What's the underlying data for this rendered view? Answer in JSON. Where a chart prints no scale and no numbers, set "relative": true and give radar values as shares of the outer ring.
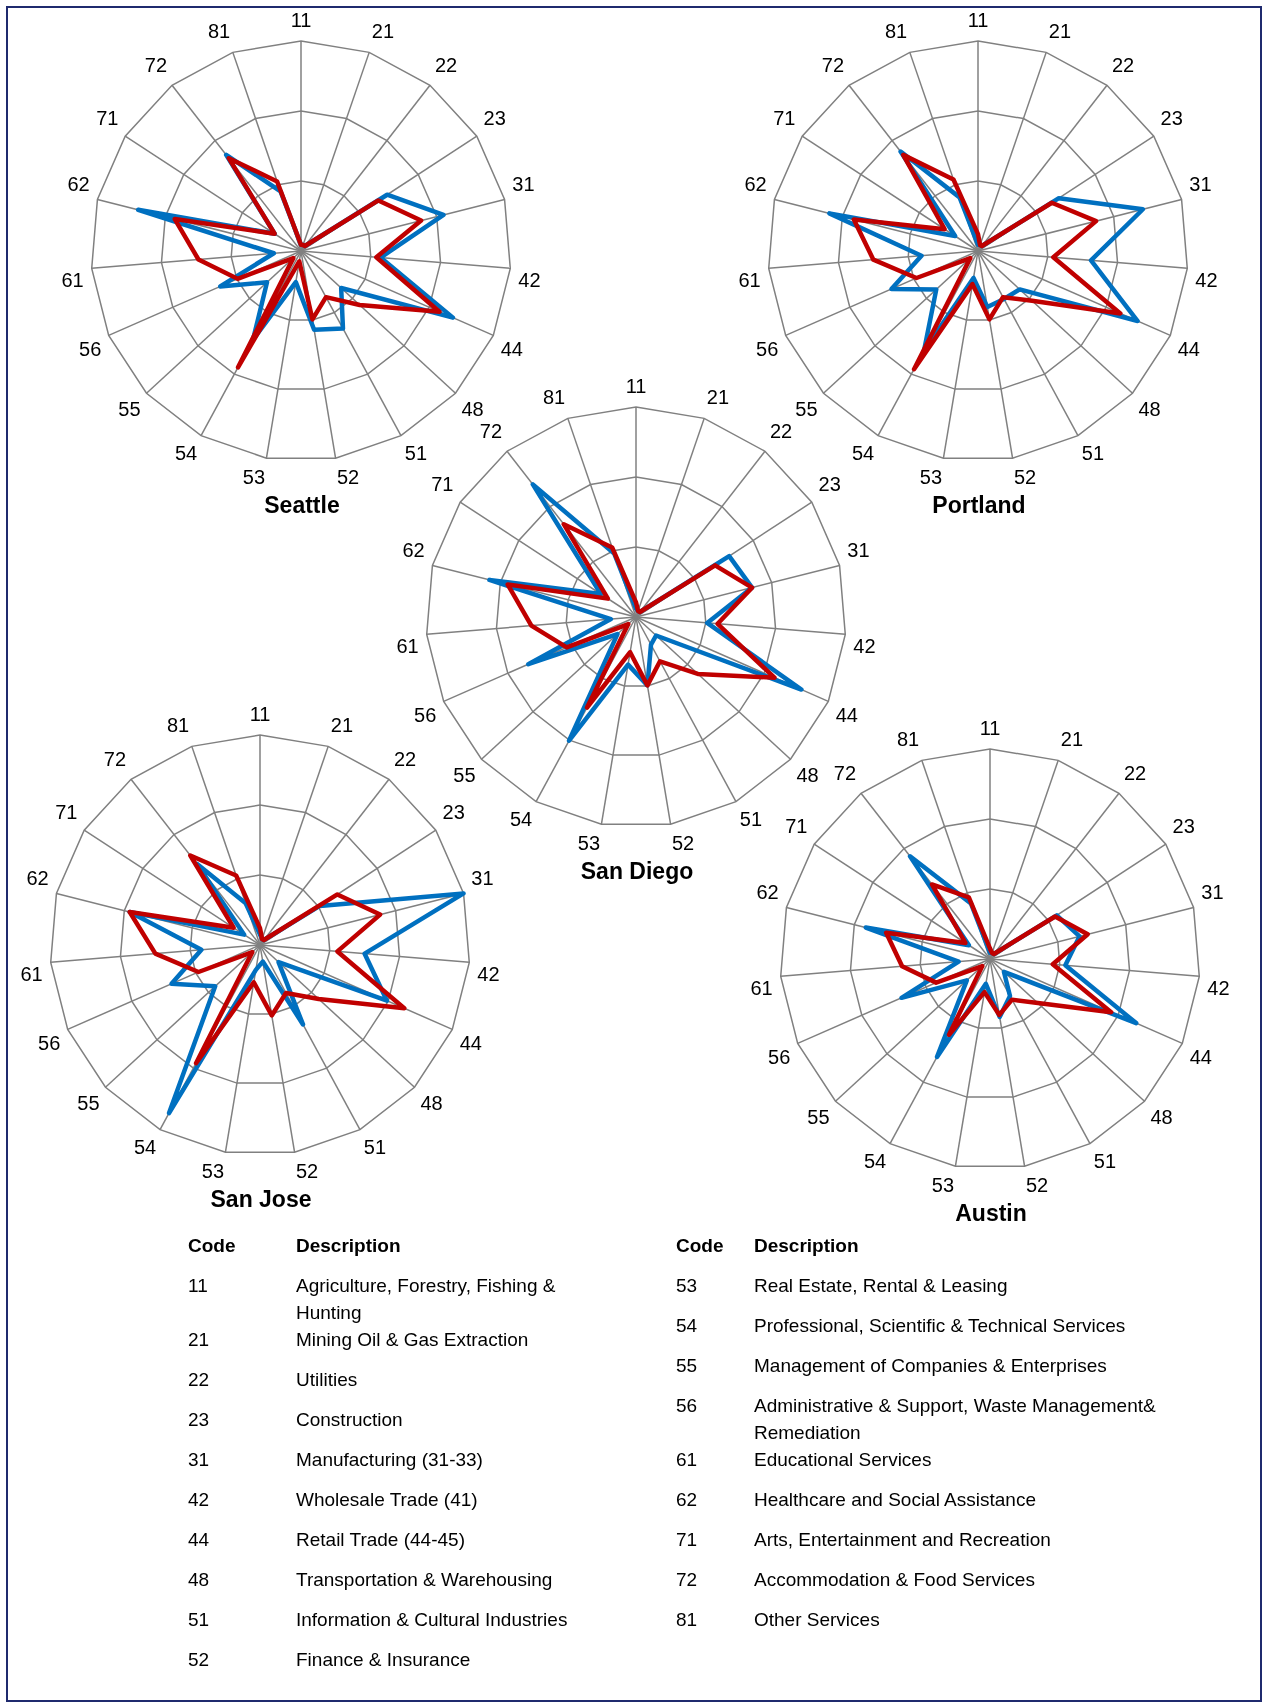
{
  "chart_data": [
    {
      "type": "radar",
      "title": "Seattle",
      "categories": [
        "11",
        "21",
        "22",
        "23",
        "31",
        "42",
        "44",
        "48",
        "51",
        "52",
        "53",
        "54",
        "55",
        "56",
        "61",
        "62",
        "71",
        "72",
        "81"
      ],
      "relative": true,
      "marker": "none",
      "series": [
        {
          "color": "#c00000",
          "values": [
            0.03,
            0.03,
            0.03,
            0.44,
            0.59,
            0.36,
            0.72,
            0.38,
            0.25,
            0.33,
            0.05,
            0.63,
            0.05,
            0.33,
            0.49,
            0.62,
            0.15,
            0.56,
            0.35
          ]
        },
        {
          "color": "#0070c0",
          "values": [
            0.03,
            0.03,
            0.03,
            0.49,
            0.7,
            0.38,
            0.79,
            0.26,
            0.42,
            0.38,
            0.15,
            0.48,
            0.22,
            0.42,
            0.13,
            0.8,
            0.15,
            0.58,
            0.3
          ]
        }
      ]
    },
    {
      "type": "radar",
      "title": "Portland",
      "categories": [
        "11",
        "21",
        "22",
        "23",
        "31",
        "42",
        "44",
        "48",
        "51",
        "52",
        "53",
        "54",
        "55",
        "56",
        "61",
        "62",
        "71",
        "72",
        "81"
      ],
      "relative": true,
      "marker": "none",
      "series": [
        {
          "color": "#c00000",
          "values": [
            0.08,
            0.03,
            0.03,
            0.42,
            0.58,
            0.36,
            0.74,
            0.35,
            0.25,
            0.33,
            0.16,
            0.64,
            0.05,
            0.32,
            0.5,
            0.61,
            0.19,
            0.58,
            0.36
          ]
        },
        {
          "color": "#0070c0",
          "values": [
            0.03,
            0.03,
            0.03,
            0.46,
            0.81,
            0.54,
            0.83,
            0.27,
            0.26,
            0.27,
            0.13,
            0.54,
            0.27,
            0.45,
            0.27,
            0.73,
            0.13,
            0.6,
            0.27
          ]
        }
      ]
    },
    {
      "type": "radar",
      "title": "San Diego",
      "categories": [
        "11",
        "21",
        "22",
        "23",
        "31",
        "42",
        "44",
        "48",
        "51",
        "52",
        "53",
        "54",
        "55",
        "56",
        "61",
        "62",
        "71",
        "72",
        "81"
      ],
      "relative": true,
      "marker": "none",
      "series": [
        {
          "color": "#c00000",
          "values": [
            0.07,
            0.03,
            0.03,
            0.45,
            0.57,
            0.39,
            0.72,
            0.4,
            0.24,
            0.33,
            0.17,
            0.49,
            0.05,
            0.36,
            0.5,
            0.63,
            0.16,
            0.56,
            0.35
          ]
        },
        {
          "color": "#0070c0",
          "values": [
            0.04,
            0.03,
            0.03,
            0.53,
            0.57,
            0.34,
            0.86,
            0.13,
            0.15,
            0.33,
            0.23,
            0.67,
            0.12,
            0.56,
            0.12,
            0.72,
            0.2,
            0.8,
            0.32
          ]
        }
      ]
    },
    {
      "type": "radar",
      "title": "San Jose",
      "categories": [
        "11",
        "21",
        "22",
        "23",
        "31",
        "42",
        "44",
        "48",
        "51",
        "52",
        "53",
        "54",
        "55",
        "56",
        "61",
        "62",
        "71",
        "72",
        "81"
      ],
      "relative": true,
      "marker": "none",
      "series": [
        {
          "color": "#c00000",
          "values": [
            0.08,
            0.03,
            0.03,
            0.44,
            0.59,
            0.37,
            0.75,
            0.38,
            0.26,
            0.34,
            0.18,
            0.64,
            0.05,
            0.32,
            0.5,
            0.64,
            0.15,
            0.54,
            0.35
          ]
        },
        {
          "color": "#0070c0",
          "values": [
            0.05,
            0.03,
            0.03,
            0.34,
            1,
            0.5,
            0.66,
            0.12,
            0.43,
            0.08,
            0.12,
            0.91,
            0.29,
            0.46,
            0.28,
            0.64,
            0.09,
            0.49,
            0.21
          ]
        }
      ]
    },
    {
      "type": "radar",
      "title": "Austin",
      "categories": [
        "11",
        "21",
        "22",
        "23",
        "31",
        "42",
        "44",
        "48",
        "51",
        "52",
        "53",
        "54",
        "55",
        "56",
        "61",
        "62",
        "71",
        "72",
        "81"
      ],
      "relative": true,
      "marker": "none",
      "series": [
        {
          "color": "#c00000",
          "values": [
            0.05,
            0.03,
            0.03,
            0.37,
            0.48,
            0.3,
            0.63,
            0.31,
            0.22,
            0.27,
            0.16,
            0.41,
            0.05,
            0.28,
            0.42,
            0.51,
            0.14,
            0.45,
            0.31
          ]
        },
        {
          "color": "#0070c0",
          "values": [
            0.03,
            0.03,
            0.03,
            0.38,
            0.44,
            0.36,
            0.76,
            0.09,
            0.2,
            0.28,
            0.12,
            0.53,
            0.15,
            0.46,
            0.15,
            0.61,
            0.12,
            0.62,
            0.28
          ]
        }
      ]
    },
    {
      "type": "other",
      "annotations": [
        "Code",
        "Description",
        "11",
        "Agriculture, Forestry, Fishing & Hunting",
        "21",
        "Mining Oil & Gas Extraction",
        "22",
        "Utilities",
        "23",
        "Construction",
        "31",
        "Manufacturing (31-33)",
        "42",
        "Wholesale Trade (41)",
        "44",
        "Retail Trade (44-45)",
        "48",
        "Transportation & Warehousing",
        "51",
        "Information & Cultural Industries",
        "52",
        "Finance & Insurance",
        "Code",
        "Description",
        "53",
        "Real Estate, Rental & Leasing",
        "54",
        "Professional, Scientific & Technical Services",
        "55",
        "Management of Companies & Enterprises",
        "56",
        "Administrative & Support, Waste Management& Remediation",
        "61",
        "Educational Services",
        "62",
        "Healthcare and Social Assistance",
        "71",
        "Arts, Entertainment and Recreation",
        "72",
        "Accommodation & Food Services",
        "81",
        "Other Services"
      ]
    }
  ]
}
